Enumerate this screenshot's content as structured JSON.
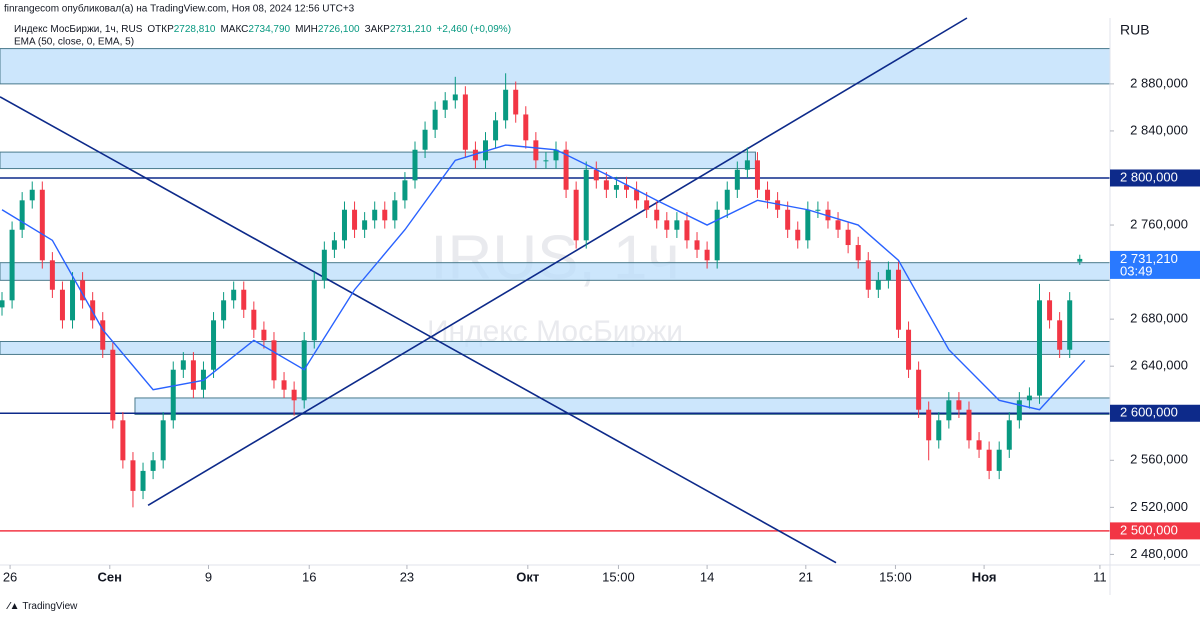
{
  "chart_data": {
    "type": "candlestick",
    "header": {
      "author": "finrangecom опубликовал(а) на TradingView.com, Ноя 08, 2024 12:56 UTC+3",
      "symbol": "Индекс МосБиржи, 1ч, RUS",
      "ohlc": [
        "ОТКР",
        "2728,810",
        "МАКС",
        "2734,790",
        "МИН",
        "2726,100",
        "ЗАКР",
        "2731,210",
        "+2,460 (+0,09%)"
      ],
      "indicator": "EMA (50, close, 0, EMA, 5)"
    },
    "watermark": [
      "IRUS, 1ч",
      "Индекс МосБиржи"
    ],
    "currency": "RUB",
    "footer": "TradingView",
    "up_color": "#089981",
    "down_color": "#f23645",
    "xlim": [
      -0.2,
      110
    ],
    "ylim": [
      2471,
      2936
    ],
    "yticks": [
      {
        "value": 2480,
        "label": "2 480,000"
      },
      {
        "value": 2520,
        "label": "2 520,000"
      },
      {
        "value": 2560,
        "label": "2 560,000"
      },
      {
        "value": 2640,
        "label": "2 640,000"
      },
      {
        "value": 2680,
        "label": "2 680,000"
      },
      {
        "value": 2760,
        "label": "2 760,000"
      },
      {
        "value": 2840,
        "label": "2 840,000"
      },
      {
        "value": 2880,
        "label": "2 880,000"
      }
    ],
    "xticks": [
      {
        "value": 0.8,
        "label": "26"
      },
      {
        "value": 10.7,
        "label": "Сен"
      },
      {
        "value": 20.5,
        "label": "9"
      },
      {
        "value": 30.5,
        "label": "16"
      },
      {
        "value": 40.2,
        "label": "23"
      },
      {
        "value": 52.2,
        "label": "Окт"
      },
      {
        "value": 61.2,
        "label": "15:00"
      },
      {
        "value": 70,
        "label": "14"
      },
      {
        "value": 79.8,
        "label": "21"
      },
      {
        "value": 88.7,
        "label": "15:00"
      },
      {
        "value": 97.5,
        "label": "Ноя"
      },
      {
        "value": 109,
        "label": "11"
      }
    ],
    "price_labels": [
      {
        "value": 2800,
        "label": "2 800,000",
        "color": "#0d2a8a"
      },
      {
        "value": 2600,
        "label": "2 600,000",
        "color": "#0d2a8a"
      },
      {
        "value": 2500,
        "label": "2 500,000",
        "color": "#f23645"
      },
      {
        "value": 2731.21,
        "label": "2 731,210",
        "sub": "03:49",
        "color": "#2979ff"
      }
    ],
    "zones": [
      {
        "top": 2910,
        "bottom": 2880,
        "from": -0.2,
        "to": 110
      },
      {
        "top": 2822,
        "bottom": 2808,
        "from": -0.2,
        "to": 74.8
      },
      {
        "top": 2728,
        "bottom": 2713,
        "from": -0.2,
        "to": 110
      },
      {
        "top": 2661,
        "bottom": 2650,
        "from": -0.2,
        "to": 110
      },
      {
        "top": 2613,
        "bottom": 2599,
        "from": 13.2,
        "to": 110
      }
    ],
    "hlines": [
      {
        "value": 2800,
        "color": "#0d2a8a"
      },
      {
        "value": 2600,
        "color": "#0d2a8a"
      },
      {
        "value": 2500,
        "color": "#f23645"
      }
    ],
    "trendlines": [
      {
        "from": [
          -0.2,
          2869
        ],
        "to": [
          82.8,
          2473
        ]
      },
      {
        "from": [
          14.5,
          2521.7
        ],
        "to": [
          95.8,
          2936
        ]
      }
    ],
    "ema": {
      "color": "#2962ff",
      "x": [
        0,
        5,
        10,
        15,
        20,
        25,
        30,
        35,
        40,
        45,
        50,
        55,
        60,
        65,
        70,
        75,
        80,
        85,
        89,
        94,
        99,
        103,
        107.5
      ],
      "values": [
        2773,
        2747,
        2671,
        2620,
        2628,
        2662,
        2637,
        2705,
        2756,
        2815,
        2828,
        2824,
        2803,
        2781,
        2760,
        2781,
        2773,
        2760,
        2730,
        2654,
        2611,
        2603,
        2645
      ]
    },
    "candles": [
      [
        2690,
        2703,
        2683,
        2696
      ],
      [
        2696,
        2763,
        2689,
        2756
      ],
      [
        2756,
        2788,
        2749,
        2781
      ],
      [
        2781,
        2797,
        2774,
        2790
      ],
      [
        2790,
        2797,
        2723,
        2730
      ],
      [
        2730,
        2737,
        2698,
        2705
      ],
      [
        2705,
        2712,
        2672,
        2679
      ],
      [
        2679,
        2720,
        2672,
        2713
      ],
      [
        2713,
        2720,
        2689,
        2696
      ],
      [
        2696,
        2703,
        2672,
        2679
      ],
      [
        2679,
        2686,
        2647,
        2654
      ],
      [
        2654,
        2661,
        2587,
        2594
      ],
      [
        2594,
        2601,
        2553,
        2560
      ],
      [
        2560,
        2567,
        2520,
        2534
      ],
      [
        2534,
        2558,
        2527,
        2551
      ],
      [
        2551,
        2567,
        2544,
        2560
      ],
      [
        2560,
        2601,
        2553,
        2594
      ],
      [
        2594,
        2644,
        2587,
        2637
      ],
      [
        2637,
        2652,
        2630,
        2645
      ],
      [
        2645,
        2652,
        2613,
        2620
      ],
      [
        2620,
        2644,
        2613,
        2637
      ],
      [
        2637,
        2686,
        2630,
        2679
      ],
      [
        2679,
        2703,
        2672,
        2696
      ],
      [
        2696,
        2712,
        2689,
        2705
      ],
      [
        2705,
        2712,
        2681,
        2688
      ],
      [
        2688,
        2695,
        2664,
        2671
      ],
      [
        2671,
        2678,
        2655,
        2662
      ],
      [
        2662,
        2669,
        2621,
        2628
      ],
      [
        2628,
        2635,
        2613,
        2620
      ],
      [
        2620,
        2627,
        2598,
        2611
      ],
      [
        2611,
        2669,
        2604,
        2662
      ],
      [
        2662,
        2720,
        2655,
        2713
      ],
      [
        2713,
        2746,
        2706,
        2739
      ],
      [
        2739,
        2754,
        2732,
        2747
      ],
      [
        2747,
        2780,
        2740,
        2773
      ],
      [
        2773,
        2780,
        2749,
        2756
      ],
      [
        2756,
        2771,
        2749,
        2764
      ],
      [
        2764,
        2780,
        2757,
        2773
      ],
      [
        2773,
        2780,
        2757,
        2764
      ],
      [
        2764,
        2788,
        2757,
        2781
      ],
      [
        2781,
        2805,
        2774,
        2798
      ],
      [
        2798,
        2831,
        2791,
        2824
      ],
      [
        2824,
        2848,
        2817,
        2841
      ],
      [
        2841,
        2865,
        2834,
        2858
      ],
      [
        2858,
        2873,
        2851,
        2866
      ],
      [
        2866,
        2886,
        2859,
        2871
      ],
      [
        2871,
        2878,
        2817,
        2824
      ],
      [
        2824,
        2831,
        2808,
        2815
      ],
      [
        2815,
        2839,
        2808,
        2832
      ],
      [
        2832,
        2856,
        2825,
        2849
      ],
      [
        2849,
        2889,
        2842,
        2875
      ],
      [
        2875,
        2882,
        2847,
        2854
      ],
      [
        2854,
        2861,
        2825,
        2832
      ],
      [
        2832,
        2839,
        2808,
        2815
      ],
      [
        2815,
        2822,
        2808,
        2815
      ],
      [
        2815,
        2831,
        2808,
        2824
      ],
      [
        2824,
        2831,
        2783,
        2790
      ],
      [
        2790,
        2797,
        2740,
        2747
      ],
      [
        2747,
        2814,
        2740,
        2807
      ],
      [
        2807,
        2814,
        2791,
        2798
      ],
      [
        2798,
        2805,
        2783,
        2790
      ],
      [
        2790,
        2801,
        2783,
        2794
      ],
      [
        2794,
        2801,
        2783,
        2790
      ],
      [
        2790,
        2797,
        2774,
        2781
      ],
      [
        2781,
        2788,
        2766,
        2773
      ],
      [
        2773,
        2780,
        2757,
        2764
      ],
      [
        2764,
        2771,
        2749,
        2756
      ],
      [
        2756,
        2771,
        2749,
        2764
      ],
      [
        2764,
        2771,
        2740,
        2747
      ],
      [
        2747,
        2754,
        2732,
        2739
      ],
      [
        2739,
        2746,
        2723,
        2730
      ],
      [
        2730,
        2780,
        2723,
        2773
      ],
      [
        2773,
        2797,
        2766,
        2790
      ],
      [
        2790,
        2814,
        2783,
        2807
      ],
      [
        2807,
        2826,
        2800,
        2815
      ],
      [
        2815,
        2822,
        2783,
        2790
      ],
      [
        2790,
        2797,
        2774,
        2781
      ],
      [
        2781,
        2788,
        2766,
        2773
      ],
      [
        2773,
        2780,
        2749,
        2756
      ],
      [
        2756,
        2763,
        2740,
        2747
      ],
      [
        2747,
        2780,
        2740,
        2773
      ],
      [
        2773,
        2780,
        2766,
        2773
      ],
      [
        2773,
        2780,
        2757,
        2764
      ],
      [
        2764,
        2771,
        2749,
        2756
      ],
      [
        2756,
        2763,
        2736,
        2743
      ],
      [
        2743,
        2750,
        2723,
        2730
      ],
      [
        2730,
        2737,
        2698,
        2705
      ],
      [
        2705,
        2720,
        2698,
        2713
      ],
      [
        2713,
        2729,
        2706,
        2722
      ],
      [
        2722,
        2729,
        2664,
        2671
      ],
      [
        2671,
        2678,
        2630,
        2637
      ],
      [
        2637,
        2644,
        2596,
        2603
      ],
      [
        2603,
        2610,
        2560,
        2577
      ],
      [
        2577,
        2601,
        2570,
        2594
      ],
      [
        2594,
        2618,
        2587,
        2611
      ],
      [
        2611,
        2618,
        2596,
        2603
      ],
      [
        2603,
        2610,
        2570,
        2577
      ],
      [
        2577,
        2584,
        2562,
        2569
      ],
      [
        2569,
        2576,
        2544,
        2551
      ],
      [
        2551,
        2576,
        2544,
        2569
      ],
      [
        2569,
        2601,
        2562,
        2594
      ],
      [
        2594,
        2618,
        2587,
        2611
      ],
      [
        2611,
        2622,
        2604,
        2615
      ],
      [
        2615,
        2710,
        2608,
        2696
      ],
      [
        2696,
        2703,
        2672,
        2679
      ],
      [
        2679,
        2686,
        2647,
        2654
      ],
      [
        2654,
        2703,
        2647,
        2696
      ],
      [
        2728.81,
        2734.79,
        2726.1,
        2731.21
      ]
    ]
  }
}
